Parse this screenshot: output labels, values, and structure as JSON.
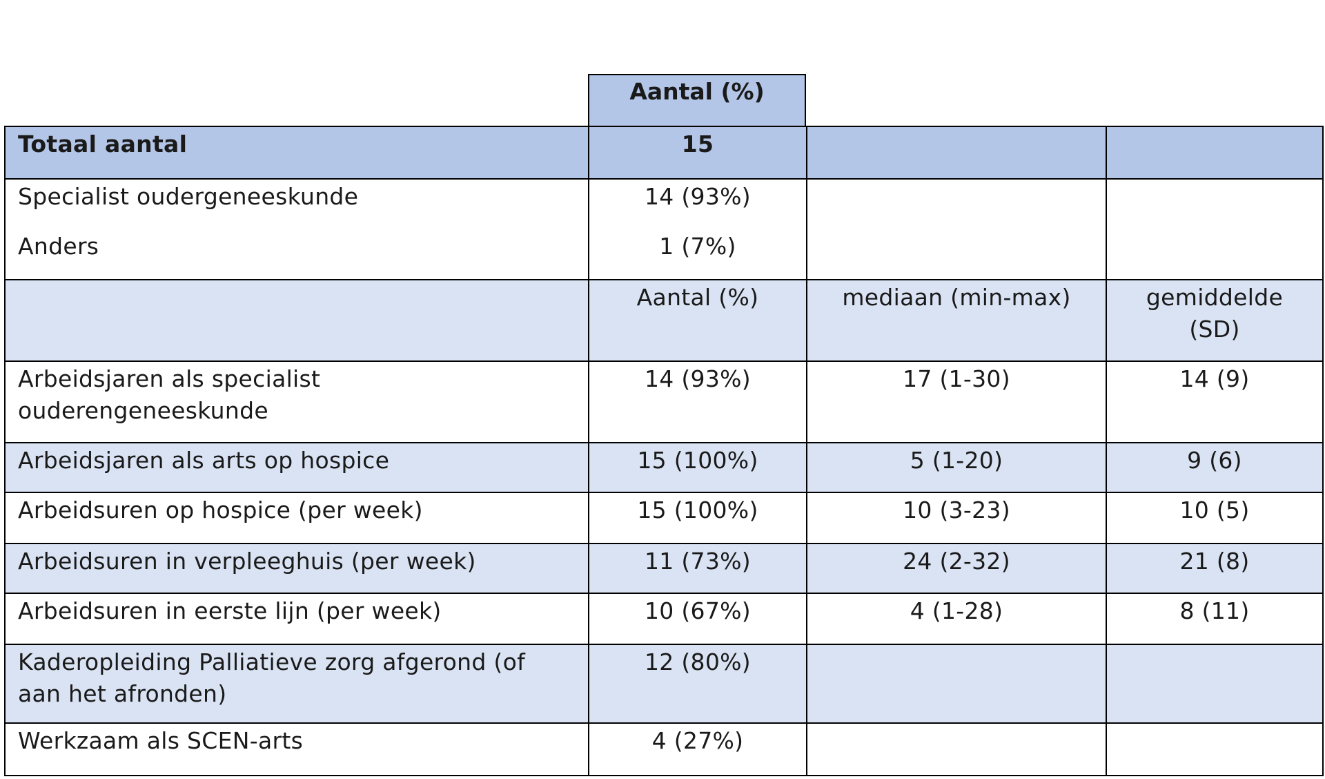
{
  "header": {
    "col2_label": "Aantal (%)"
  },
  "total_row": {
    "label": "Totaal aantal",
    "count": "15"
  },
  "profession_row": {
    "lines": [
      {
        "label": "Specialist oudergeneeskunde",
        "value": "14 (93%)"
      },
      {
        "label": "Anders",
        "value": "1 (7%)"
      }
    ]
  },
  "subheader": {
    "col2": "Aantal (%)",
    "col3": "mediaan (min-max)",
    "col4_line1": "gemiddelde",
    "col4_line2": "(SD)"
  },
  "rows": [
    {
      "label_line1": "Arbeidsjaren als specialist",
      "label_line2": "ouderengeneeskunde",
      "count": "14 (93%)",
      "median": "17 (1-30)",
      "mean": "14 (9)"
    },
    {
      "label_line1": "Arbeidsjaren als arts op hospice",
      "count": "15 (100%)",
      "median": "5 (1-20)",
      "mean": "9 (6)"
    },
    {
      "label_line1": "Arbeidsuren op hospice (per week)",
      "count": "15 (100%)",
      "median": "10 (3-23)",
      "mean": "10 (5)"
    },
    {
      "label_line1": "Arbeidsuren in verpleeghuis (per week)",
      "count": "11 (73%)",
      "median": "24 (2-32)",
      "mean": "21 (8)"
    },
    {
      "label_line1": "Arbeidsuren in eerste lijn (per week)",
      "count": "10 (67%)",
      "median": "4 (1-28)",
      "mean": "8 (11)"
    },
    {
      "label_line1": "Kaderopleiding Palliatieve zorg afgerond (of",
      "label_line2": "aan het afronden)",
      "count": "12 (80%)",
      "median": "",
      "mean": ""
    },
    {
      "label_line1": "Werkzaam als SCEN-arts",
      "count": "4 (27%)",
      "median": "",
      "mean": ""
    }
  ]
}
